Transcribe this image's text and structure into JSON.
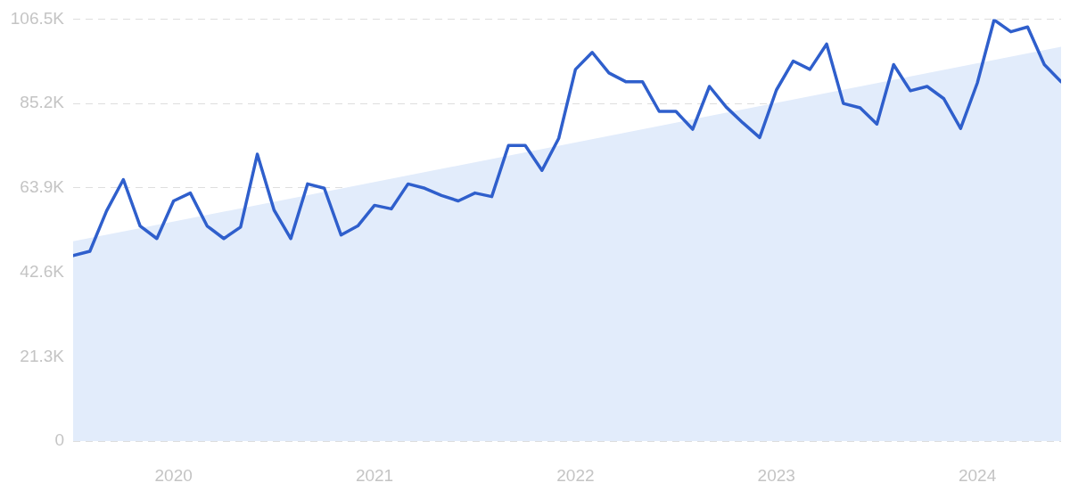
{
  "chart_data": {
    "type": "line",
    "x": [
      "2019-07",
      "2019-08",
      "2019-09",
      "2019-10",
      "2019-11",
      "2019-12",
      "2020-01",
      "2020-02",
      "2020-03",
      "2020-04",
      "2020-05",
      "2020-06",
      "2020-07",
      "2020-08",
      "2020-09",
      "2020-10",
      "2020-11",
      "2020-12",
      "2021-01",
      "2021-02",
      "2021-03",
      "2021-04",
      "2021-05",
      "2021-06",
      "2021-07",
      "2021-08",
      "2021-09",
      "2021-10",
      "2021-11",
      "2021-12",
      "2022-01",
      "2022-02",
      "2022-03",
      "2022-04",
      "2022-05",
      "2022-06",
      "2022-07",
      "2022-08",
      "2022-09",
      "2022-10",
      "2022-11",
      "2022-12",
      "2023-01",
      "2023-02",
      "2023-03",
      "2023-04",
      "2023-05",
      "2023-06",
      "2023-07",
      "2023-08",
      "2023-09",
      "2023-10",
      "2023-11",
      "2023-12",
      "2024-01",
      "2024-02",
      "2024-03",
      "2024-04",
      "2024-05",
      "2024-06"
    ],
    "series": [
      {
        "type": "area",
        "color": "#e2ecfb",
        "x": [
          "2019-07",
          "2024-06"
        ],
        "values": [
          50400,
          99500
        ]
      },
      {
        "color": "#2f5fcc",
        "values": [
          46800,
          47900,
          58100,
          66000,
          54300,
          51100,
          60600,
          62600,
          54300,
          51100,
          54000,
          72400,
          58300,
          51100,
          64900,
          63800,
          52000,
          54300,
          59500,
          58600,
          64900,
          63800,
          62000,
          60600,
          62600,
          61700,
          74600,
          74600,
          68300,
          76400,
          93800,
          98100,
          92900,
          90700,
          90700,
          83200,
          83200,
          78700,
          89500,
          84300,
          80300,
          76600,
          88600,
          95900,
          93800,
          100200,
          85200,
          84100,
          80000,
          95000,
          88400,
          89500,
          86400,
          78900,
          90400,
          106300,
          103300,
          104500,
          95000,
          90700
        ]
      }
    ],
    "xlim": [
      "2019-07",
      "2024-06"
    ],
    "xticks": [
      {
        "value": "2020-01",
        "label": "2020"
      },
      {
        "value": "2021-01",
        "label": "2021"
      },
      {
        "value": "2022-01",
        "label": "2022"
      },
      {
        "value": "2023-01",
        "label": "2023"
      },
      {
        "value": "2024-01",
        "label": "2024"
      }
    ],
    "ylim": [
      0,
      106500
    ],
    "yticks": [
      {
        "value": 0,
        "label": "0"
      },
      {
        "value": 21300,
        "label": "21.3K"
      },
      {
        "value": 42600,
        "label": "42.6K"
      },
      {
        "value": 63900,
        "label": "63.9K"
      },
      {
        "value": 85200,
        "label": "85.2K"
      },
      {
        "value": 106500,
        "label": "106.5K"
      }
    ],
    "grid": "y",
    "legend": false,
    "marker": "none",
    "line_style": "solid"
  }
}
